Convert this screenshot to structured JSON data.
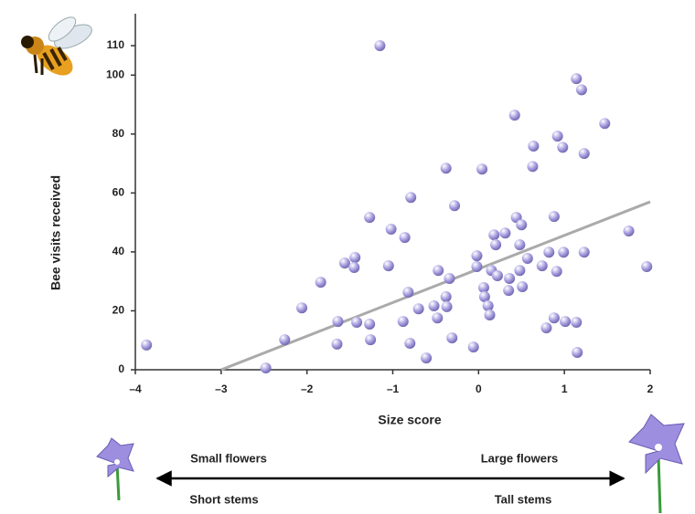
{
  "chart_data": {
    "type": "scatter",
    "x_label": "Size score",
    "y_label": "Bee visits received",
    "xlim": [
      -4,
      2
    ],
    "ylim": [
      0,
      110
    ],
    "xticks": [
      {
        "value": -4,
        "label": "–4"
      },
      {
        "value": -3,
        "label": "–3"
      },
      {
        "value": -2,
        "label": "–2"
      },
      {
        "value": -1,
        "label": "–1"
      },
      0,
      1,
      2
    ],
    "yticks": [
      0,
      20,
      40,
      60,
      80,
      100,
      110
    ],
    "color": "#a79ee0",
    "x": [
      -3.87,
      -2.48,
      -2.26,
      -2.06,
      -1.84,
      -1.65,
      -1.64,
      -1.56,
      -1.44,
      -1.45,
      -1.42,
      -1.27,
      -1.26,
      -1.27,
      -1.15,
      -1.02,
      -1.05,
      -0.86,
      -0.88,
      -0.82,
      -0.79,
      -0.8,
      -0.7,
      -0.61,
      -0.52,
      -0.48,
      -0.47,
      -0.38,
      -0.37,
      -0.38,
      -0.34,
      -0.31,
      -0.28,
      -0.06,
      -0.02,
      -0.02,
      0.04,
      0.06,
      0.07,
      0.11,
      0.13,
      0.15,
      0.18,
      0.2,
      0.22,
      0.31,
      0.36,
      0.35,
      0.42,
      0.44,
      0.5,
      0.48,
      0.48,
      0.51,
      0.57,
      0.63,
      0.64,
      0.74,
      0.79,
      0.82,
      0.88,
      0.88,
      0.91,
      0.92,
      0.98,
      0.99,
      1.01,
      1.14,
      1.15,
      1.14,
      1.2,
      1.23,
      1.23,
      1.47,
      1.75,
      1.96
    ],
    "values": [
      8.4,
      0.6,
      10.2,
      21,
      29.7,
      8.7,
      16.4,
      36.2,
      38.1,
      34.7,
      16.1,
      15.5,
      10.2,
      51.7,
      110,
      47.7,
      35.3,
      44.9,
      16.4,
      26.3,
      58.5,
      9,
      20.7,
      4,
      21.7,
      17.6,
      33.7,
      24.8,
      21.4,
      68.4,
      31,
      10.8,
      55.7,
      7.7,
      38.7,
      35,
      68.1,
      27.9,
      24.8,
      21.7,
      18.6,
      33.7,
      45.8,
      42.4,
      31.9,
      46.4,
      31,
      26.9,
      86.4,
      51.7,
      49.2,
      42.4,
      33.7,
      28.2,
      37.8,
      69,
      75.9,
      35.3,
      14.2,
      39.9,
      17.6,
      52,
      33.4,
      79.3,
      75.5,
      39.9,
      16.4,
      16.1,
      5.9,
      98.8,
      95,
      73.4,
      39.9,
      83.6,
      47.1,
      35
    ],
    "trendline": {
      "x": [
        -3,
        2
      ],
      "values": [
        0,
        57
      ],
      "color": "#aaaaaa"
    },
    "annotations": [
      "Small flowers",
      "Large flowers",
      "Short stems",
      "Tall stems"
    ]
  }
}
